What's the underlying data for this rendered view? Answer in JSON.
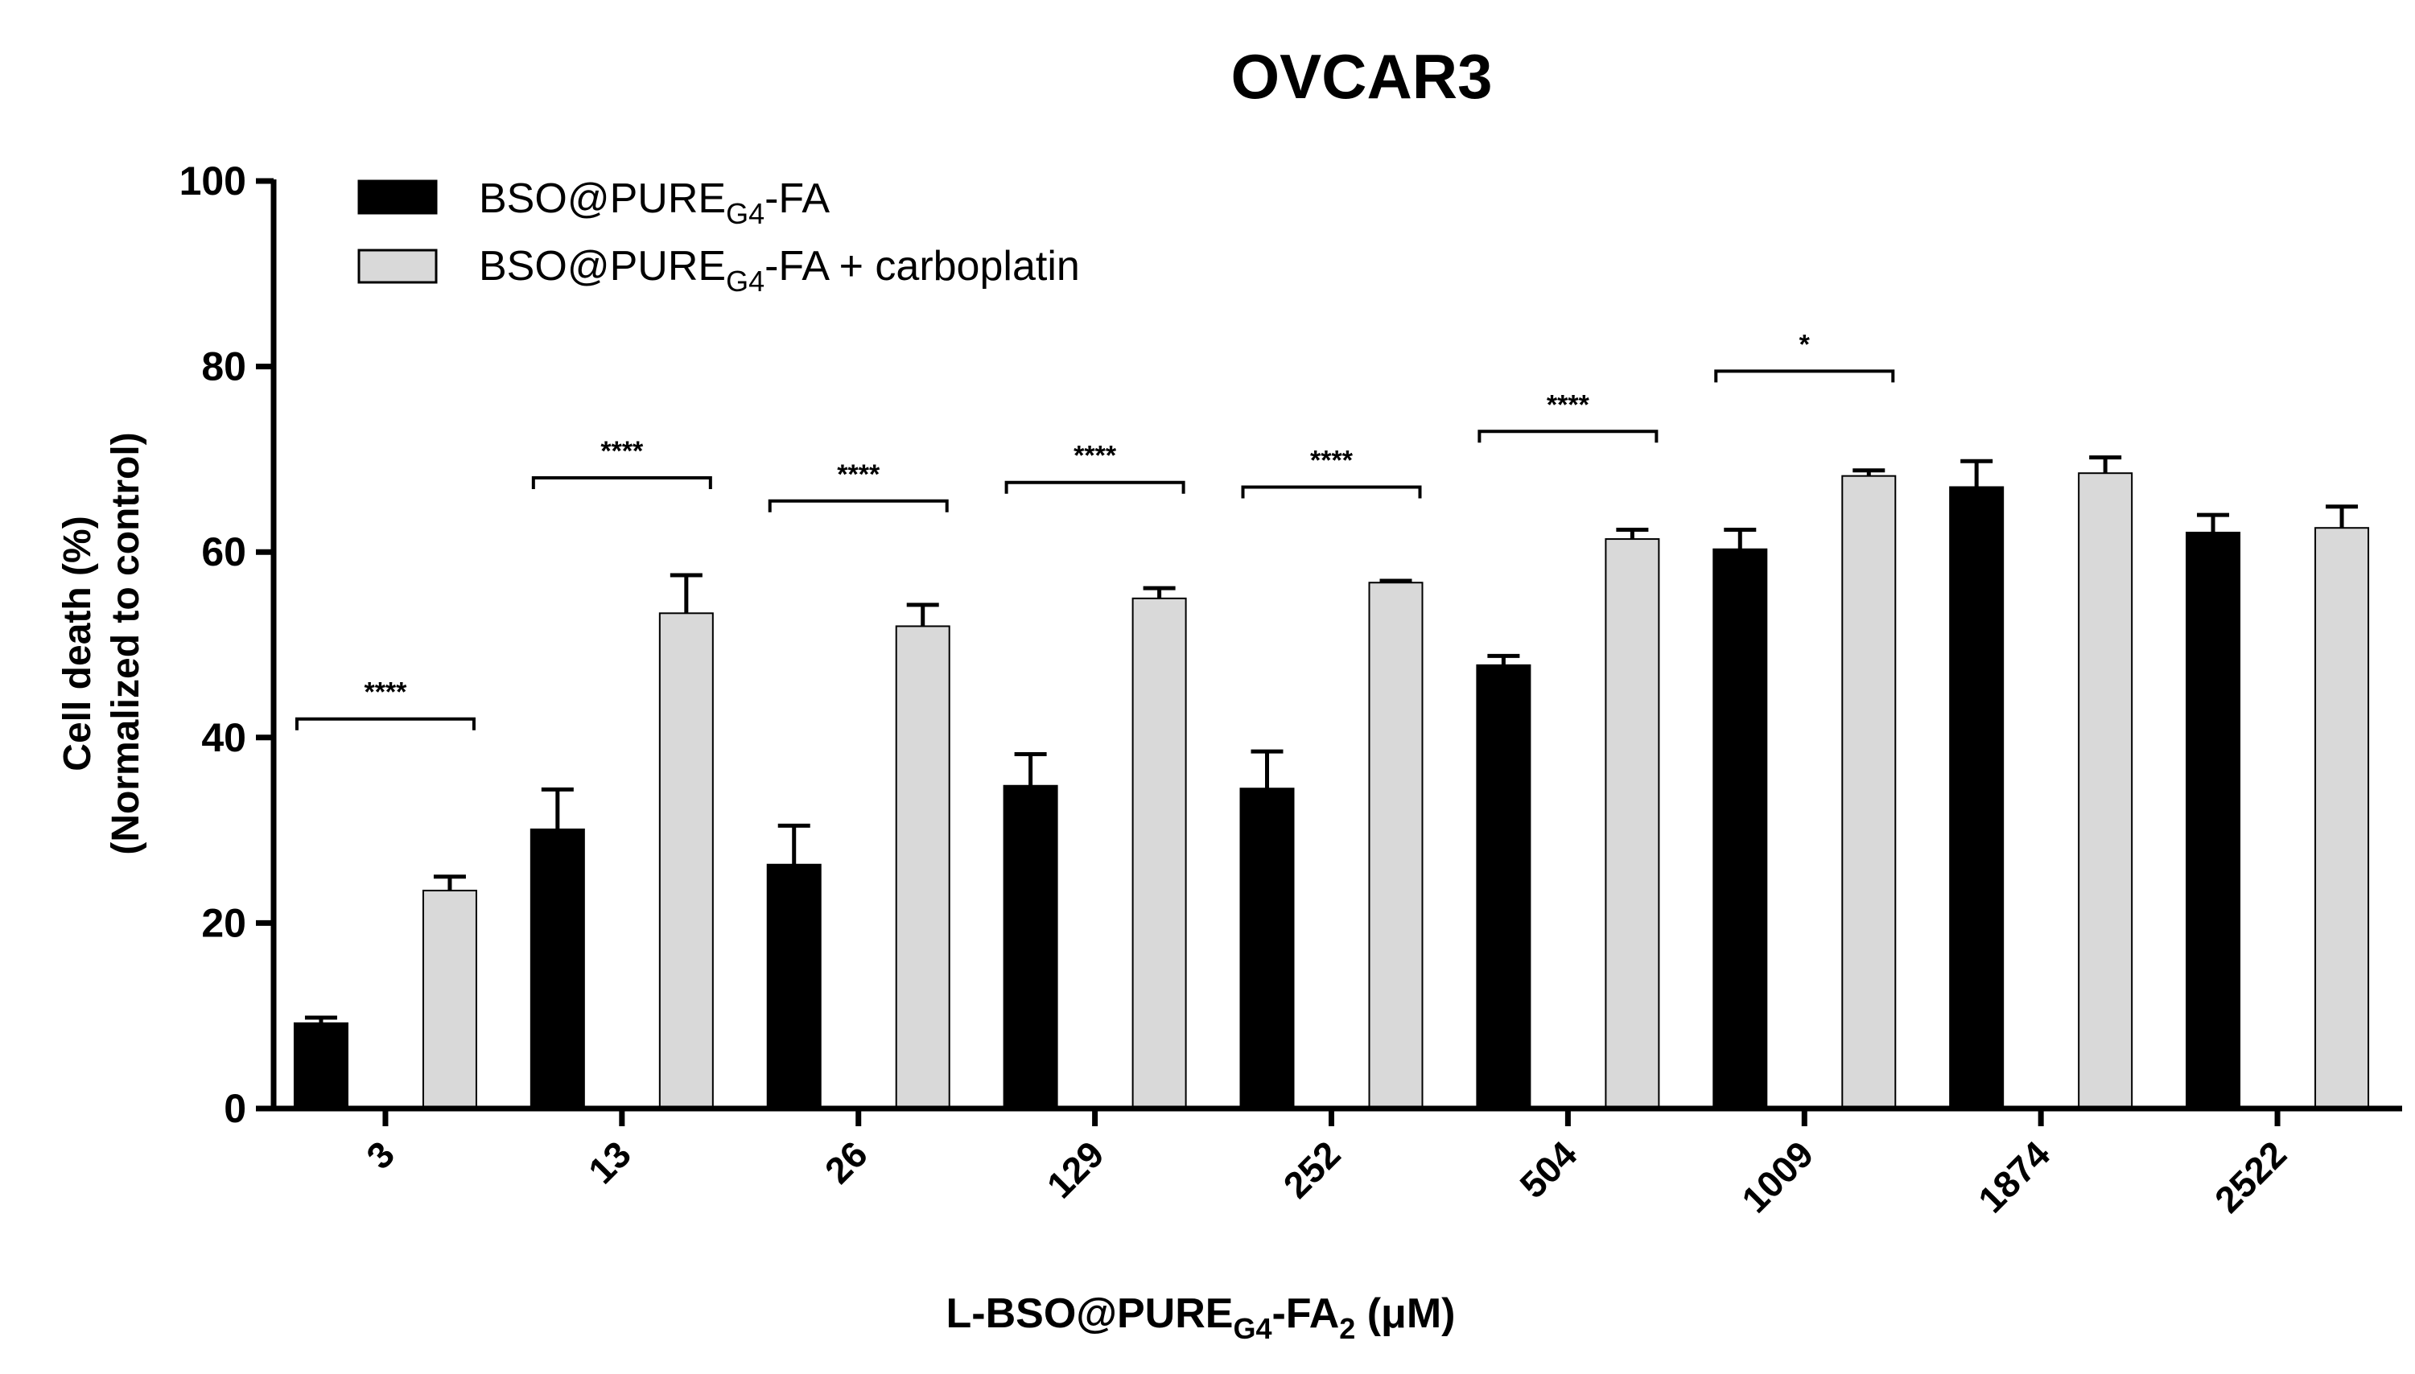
{
  "chart_data": {
    "type": "bar",
    "title": "OVCAR3",
    "ylabel_line1": "Cell death (%)",
    "ylabel_line2": "(Normalized to control)",
    "xlabel": {
      "prefix": "L-BSO@PURE",
      "sub1": "G4",
      "mid": "-FA",
      "sub2": "2",
      "suffix": " (μM)"
    },
    "ylim": [
      0,
      100
    ],
    "yticks": [
      0,
      20,
      40,
      60,
      80,
      100
    ],
    "categories": [
      "3",
      "13",
      "26",
      "129",
      "252",
      "504",
      "1009",
      "1874",
      "2522"
    ],
    "series": [
      {
        "name": "BSO@PURE_G4-FA",
        "legend": {
          "main": "BSO@PURE",
          "sub": "G4",
          "suffix": "-FA"
        },
        "color": "#000000",
        "values": [
          9.2,
          30.1,
          26.3,
          34.8,
          34.5,
          47.8,
          60.3,
          67.0,
          62.1
        ],
        "errors": [
          0.6,
          4.3,
          4.2,
          3.4,
          4.0,
          1.0,
          2.1,
          2.8,
          1.9
        ]
      },
      {
        "name": "BSO@PURE_G4-FA + carboplatin",
        "legend": {
          "main": "BSO@PURE",
          "sub": "G4",
          "suffix": "-FA + carboplatin"
        },
        "color": "#d9d9d9",
        "values": [
          23.5,
          53.4,
          52.0,
          55.0,
          56.7,
          61.4,
          68.2,
          68.5,
          62.6
        ],
        "errors": [
          1.5,
          4.1,
          2.3,
          1.1,
          0.2,
          1.0,
          0.6,
          1.7,
          2.3
        ]
      }
    ],
    "significance": [
      {
        "category_index": 0,
        "label": "****",
        "y": 42
      },
      {
        "category_index": 1,
        "label": "****",
        "y": 68
      },
      {
        "category_index": 2,
        "label": "****",
        "y": 65.5
      },
      {
        "category_index": 3,
        "label": "****",
        "y": 67.5
      },
      {
        "category_index": 4,
        "label": "****",
        "y": 67
      },
      {
        "category_index": 5,
        "label": "****",
        "y": 73
      },
      {
        "category_index": 6,
        "label": "*",
        "y": 79.5
      }
    ],
    "legend_position": "top-left"
  }
}
